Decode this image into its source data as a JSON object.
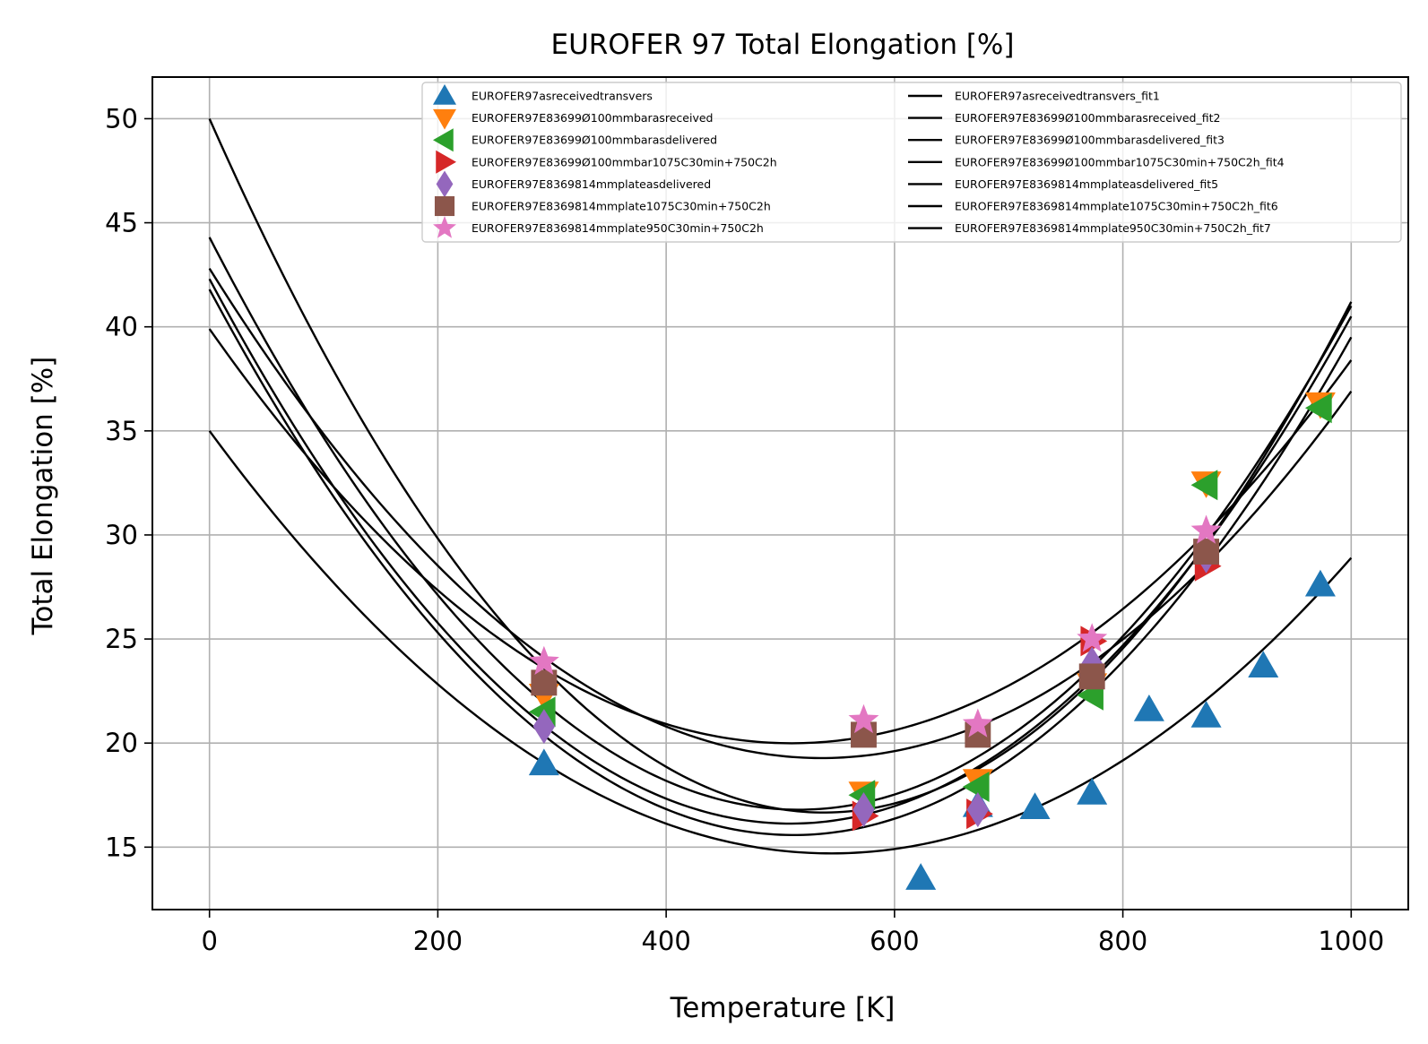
{
  "chart_data": {
    "type": "scatter",
    "title": "EUROFER 97 Total Elongation [%]",
    "xlabel": "Temperature [K]",
    "ylabel": "Total Elongation [%]",
    "xlim": [
      -50,
      1050
    ],
    "ylim": [
      12,
      52
    ],
    "xticks": [
      0,
      200,
      400,
      600,
      800,
      1000
    ],
    "yticks": [
      15,
      20,
      25,
      30,
      35,
      40,
      45,
      50
    ],
    "grid": true,
    "legend_position": "top-right",
    "series": [
      {
        "name": "EUROFER97asreceivedtransvers",
        "marker": "triangle-up",
        "color": "#1f77b4",
        "x": [
          293,
          623,
          673,
          723,
          773,
          823,
          873,
          923,
          973
        ],
        "y": [
          19.0,
          13.5,
          17.0,
          16.9,
          17.6,
          21.6,
          21.3,
          23.7,
          27.6
        ]
      },
      {
        "name": "EUROFER97E83699Ø100mmbarasreceived",
        "marker": "triangle-down",
        "color": "#ff7f0e",
        "x": [
          293,
          573,
          673,
          773,
          873,
          973
        ],
        "y": [
          22.3,
          17.6,
          18.2,
          22.8,
          32.5,
          36.3
        ]
      },
      {
        "name": "EUROFER97E83699Ø100mmbarasdelivered",
        "marker": "triangle-left",
        "color": "#2ca02c",
        "x": [
          293,
          573,
          673,
          773,
          873,
          973
        ],
        "y": [
          21.5,
          17.5,
          17.9,
          22.3,
          32.4,
          36.1
        ]
      },
      {
        "name": "EUROFER97E83699Ø100mmbar1075C30min+750C2h",
        "marker": "triangle-right",
        "color": "#d62728",
        "x": [
          573,
          673,
          773,
          873
        ],
        "y": [
          16.5,
          16.6,
          24.9,
          28.5
        ]
      },
      {
        "name": "EUROFER97E8369814mmplateasdelivered",
        "marker": "diamond",
        "color": "#9467bd",
        "x": [
          293,
          573,
          673,
          773,
          873
        ],
        "y": [
          20.8,
          16.8,
          16.8,
          23.8,
          29.0
        ]
      },
      {
        "name": "EUROFER97E8369814mmplate1075C30min+750C2h",
        "marker": "square",
        "color": "#8c564b",
        "x": [
          293,
          573,
          673,
          773,
          873
        ],
        "y": [
          22.9,
          20.4,
          20.4,
          23.2,
          29.2
        ]
      },
      {
        "name": "EUROFER97E8369814mmplate950C30min+750C2h",
        "marker": "star",
        "color": "#e377c2",
        "x": [
          293,
          573,
          673,
          773,
          873
        ],
        "y": [
          23.9,
          21.1,
          20.9,
          25.0,
          30.2
        ]
      }
    ],
    "fits": [
      {
        "name": "EUROFER97asreceivedtransvers_fit1",
        "color": "#000000",
        "x": [
          0,
          545,
          1000
        ],
        "y": [
          35.0,
          14.7,
          28.9
        ]
      },
      {
        "name": "EUROFER97E83699Ø100mmbarasreceived_fit2",
        "color": "#000000",
        "x": [
          0,
          520,
          1000
        ],
        "y": [
          50.0,
          16.7,
          41.2
        ]
      },
      {
        "name": "EUROFER97E83699Ø100mmbarasdelivered_fit3",
        "color": "#000000",
        "x": [
          0,
          520,
          1000
        ],
        "y": [
          44.3,
          16.8,
          41.0
        ]
      },
      {
        "name": "EUROFER97E83699Ø100mmbar1075C30min+750C2h_fit4",
        "color": "#000000",
        "x": [
          0,
          535,
          1000
        ],
        "y": [
          42.3,
          16.2,
          40.5
        ]
      },
      {
        "name": "EUROFER97E8369814mmplateasdelivered_fit5",
        "color": "#000000",
        "x": [
          0,
          525,
          1000
        ],
        "y": [
          41.8,
          15.6,
          39.5
        ]
      },
      {
        "name": "EUROFER97E8369814mmplate1075C30min+750C2h_fit6",
        "color": "#000000",
        "x": [
          0,
          520,
          1000
        ],
        "y": [
          42.8,
          19.3,
          36.9
        ]
      },
      {
        "name": "EUROFER97E8369814mmplate950C30min+750C2h_fit7",
        "color": "#000000",
        "x": [
          0,
          520,
          1000
        ],
        "y": [
          39.9,
          20.0,
          38.4
        ]
      }
    ]
  }
}
